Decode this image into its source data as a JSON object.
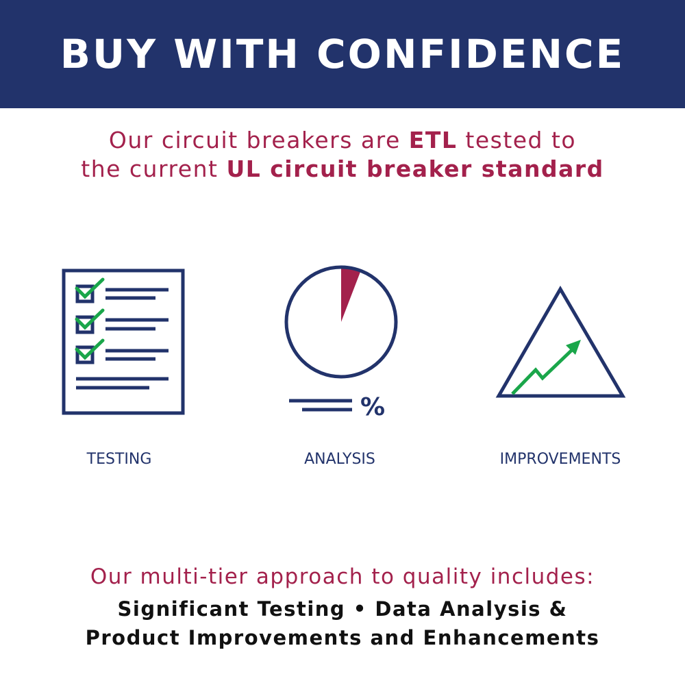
{
  "header": {
    "title": "BUY WITH CONFIDENCE"
  },
  "subtitle": {
    "line1_a": "Our circuit breakers are ",
    "line1_b": "ETL",
    "line1_c": " tested to",
    "line2_a": "the current ",
    "line2_b": "UL circuit breaker standard"
  },
  "icons": [
    {
      "name": "checklist-icon",
      "label": "TESTING"
    },
    {
      "name": "pie-chart-icon",
      "label": "ANALYSIS",
      "percent_symbol": "%"
    },
    {
      "name": "triangle-growth-icon",
      "label": "IMPROVEMENTS"
    }
  ],
  "footer": {
    "line1": "Our multi-tier approach to quality includes:",
    "line2": "Significant Testing • Data Analysis &",
    "line3": "Product Improvements and Enhancements"
  },
  "colors": {
    "navy": "#22336b",
    "maroon": "#a3214c",
    "green": "#1aa64a"
  }
}
